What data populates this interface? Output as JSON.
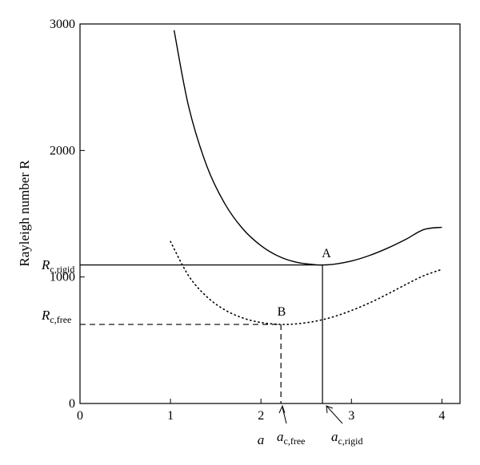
{
  "chart_data": {
    "type": "line",
    "title": "",
    "xlabel": "a",
    "ylabel": "Rayleigh number R",
    "xlim": [
      0,
      4.2
    ],
    "ylim": [
      0,
      3000
    ],
    "xticks": [
      "0",
      "1",
      "2",
      "3",
      "4"
    ],
    "yticks": [
      "0",
      "1000",
      "2000",
      "3000"
    ],
    "grid": false,
    "series": [
      {
        "style": "solid",
        "color": "#000000",
        "x": [
          1.04,
          1.2,
          1.4,
          1.6,
          1.8,
          2.0,
          2.2,
          2.4,
          2.6,
          2.68,
          2.8,
          3.0,
          3.2,
          3.4,
          3.6,
          3.8,
          4.0
        ],
        "y": [
          2950,
          2350,
          1880,
          1580,
          1380,
          1248,
          1162,
          1115,
          1097,
          1095,
          1100,
          1126,
          1170,
          1228,
          1297,
          1375,
          1393
        ]
      },
      {
        "style": "dotted",
        "color": "#000000",
        "x": [
          1.0,
          1.2,
          1.4,
          1.6,
          1.8,
          2.0,
          2.221,
          2.4,
          2.6,
          2.8,
          3.0,
          3.2,
          3.4,
          3.6,
          3.8,
          4.0
        ],
        "y": [
          1280,
          1010,
          845,
          740,
          676,
          640,
          625,
          630,
          650,
          685,
          735,
          795,
          865,
          940,
          1010,
          1060
        ]
      }
    ],
    "points": [
      {
        "label": "A",
        "x": 2.68,
        "y": 1095
      },
      {
        "label": "B",
        "x": 2.221,
        "y": 625
      }
    ],
    "reference_lines": [
      {
        "style": "solid",
        "x": 2.68,
        "y": 1095
      },
      {
        "style": "dashed",
        "x": 2.221,
        "y": 625
      }
    ],
    "annotations": {
      "R_rigid": {
        "main": "R",
        "sub": "c,rigid"
      },
      "R_free": {
        "main": "R",
        "sub": "c,free"
      },
      "a_free": {
        "main": "a",
        "sub": "c,free"
      },
      "a_rigid": {
        "main": "a",
        "sub": "c,rigid"
      }
    }
  }
}
